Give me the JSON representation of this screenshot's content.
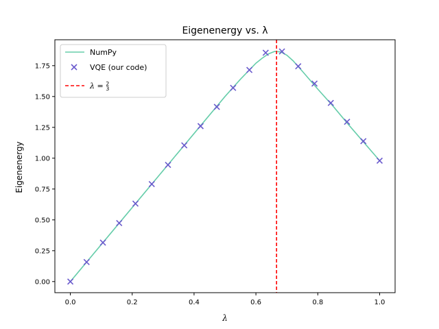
{
  "chart_data": {
    "type": "line",
    "title": "Eigenenergy vs. λ",
    "xlabel": "λ",
    "ylabel": "Eigenenergy",
    "xlim": [
      -0.05,
      1.05
    ],
    "ylim": [
      -0.09,
      1.96
    ],
    "xticks": [
      0.0,
      0.2,
      0.4,
      0.6,
      0.8,
      1.0
    ],
    "xtick_labels": [
      "0.0",
      "0.2",
      "0.4",
      "0.6",
      "0.8",
      "1.0"
    ],
    "yticks": [
      0.0,
      0.25,
      0.5,
      0.75,
      1.0,
      1.25,
      1.5,
      1.75
    ],
    "ytick_labels": [
      "0.00",
      "0.25",
      "0.50",
      "0.75",
      "1.00",
      "1.25",
      "1.50",
      "1.75"
    ],
    "grid": false,
    "legend_position": "top-left",
    "series": [
      {
        "name": "NumPy",
        "kind": "line",
        "color": "#66cdaa",
        "x": [
          0.0,
          0.05,
          0.1,
          0.15,
          0.2,
          0.25,
          0.3,
          0.35,
          0.4,
          0.45,
          0.5,
          0.55,
          0.6,
          0.62,
          0.64,
          0.66,
          0.68,
          0.7,
          0.72,
          0.75,
          0.8,
          0.85,
          0.9,
          0.95,
          1.0
        ],
        "y": [
          0.0,
          0.15,
          0.3,
          0.45,
          0.6,
          0.75,
          0.9,
          1.05,
          1.2,
          1.35,
          1.5,
          1.64,
          1.77,
          1.81,
          1.845,
          1.865,
          1.862,
          1.835,
          1.79,
          1.705,
          1.56,
          1.42,
          1.27,
          1.125,
          0.98
        ]
      },
      {
        "name": "VQE (our code)",
        "kind": "scatter",
        "marker": "x",
        "color": "#6a5acd",
        "x": [
          0.0,
          0.0526,
          0.1053,
          0.1579,
          0.2105,
          0.2632,
          0.3158,
          0.3684,
          0.4211,
          0.4737,
          0.5263,
          0.5789,
          0.6316,
          0.6842,
          0.7368,
          0.7895,
          0.8421,
          0.8947,
          0.9474,
          1.0
        ],
        "y": [
          0.0,
          0.158,
          0.316,
          0.474,
          0.632,
          0.79,
          0.946,
          1.104,
          1.26,
          1.416,
          1.57,
          1.715,
          1.855,
          1.865,
          1.745,
          1.605,
          1.448,
          1.295,
          1.138,
          0.98
        ]
      },
      {
        "name": "λ = 2/3",
        "kind": "vline",
        "style": "dashed",
        "color": "#ff0000",
        "x": 0.6667
      }
    ]
  }
}
